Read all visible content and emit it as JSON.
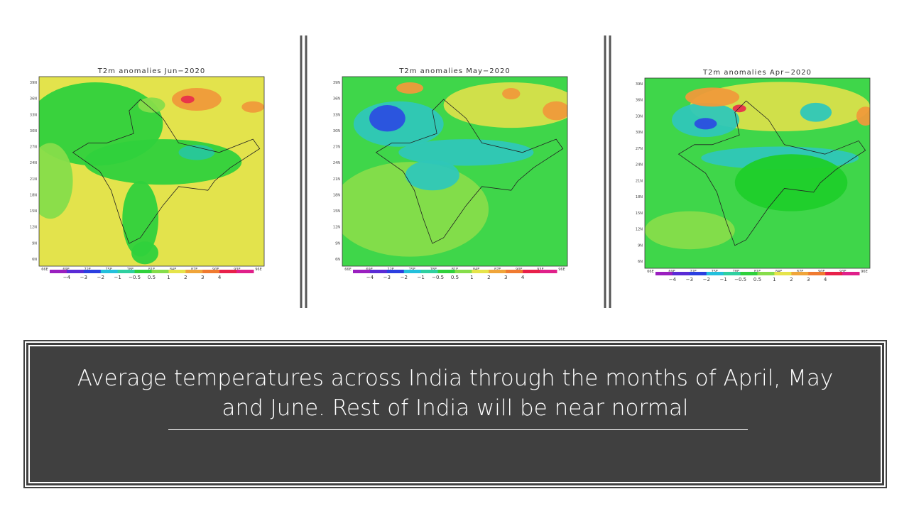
{
  "panels": [
    {
      "title": "T2m anomalies Jun−2020"
    },
    {
      "title": "T2m anomalies May−2020"
    },
    {
      "title": "T2m anomalies Apr−2020"
    }
  ],
  "lat_labels": [
    "39N",
    "36N",
    "33N",
    "30N",
    "27N",
    "24N",
    "21N",
    "18N",
    "15N",
    "12N",
    "9N",
    "6N"
  ],
  "lon_labels": [
    "66E",
    "69E",
    "72E",
    "75E",
    "78E",
    "81E",
    "84E",
    "87E",
    "90E",
    "93E",
    "96E"
  ],
  "colorbar_labels": [
    "−4",
    "−3",
    "−2",
    "−1",
    "−0.5",
    "0.5",
    "1",
    "2",
    "3",
    "4"
  ],
  "caption": "Average temperatures across India through the months of April, May and June. Rest of India will be near normal"
}
